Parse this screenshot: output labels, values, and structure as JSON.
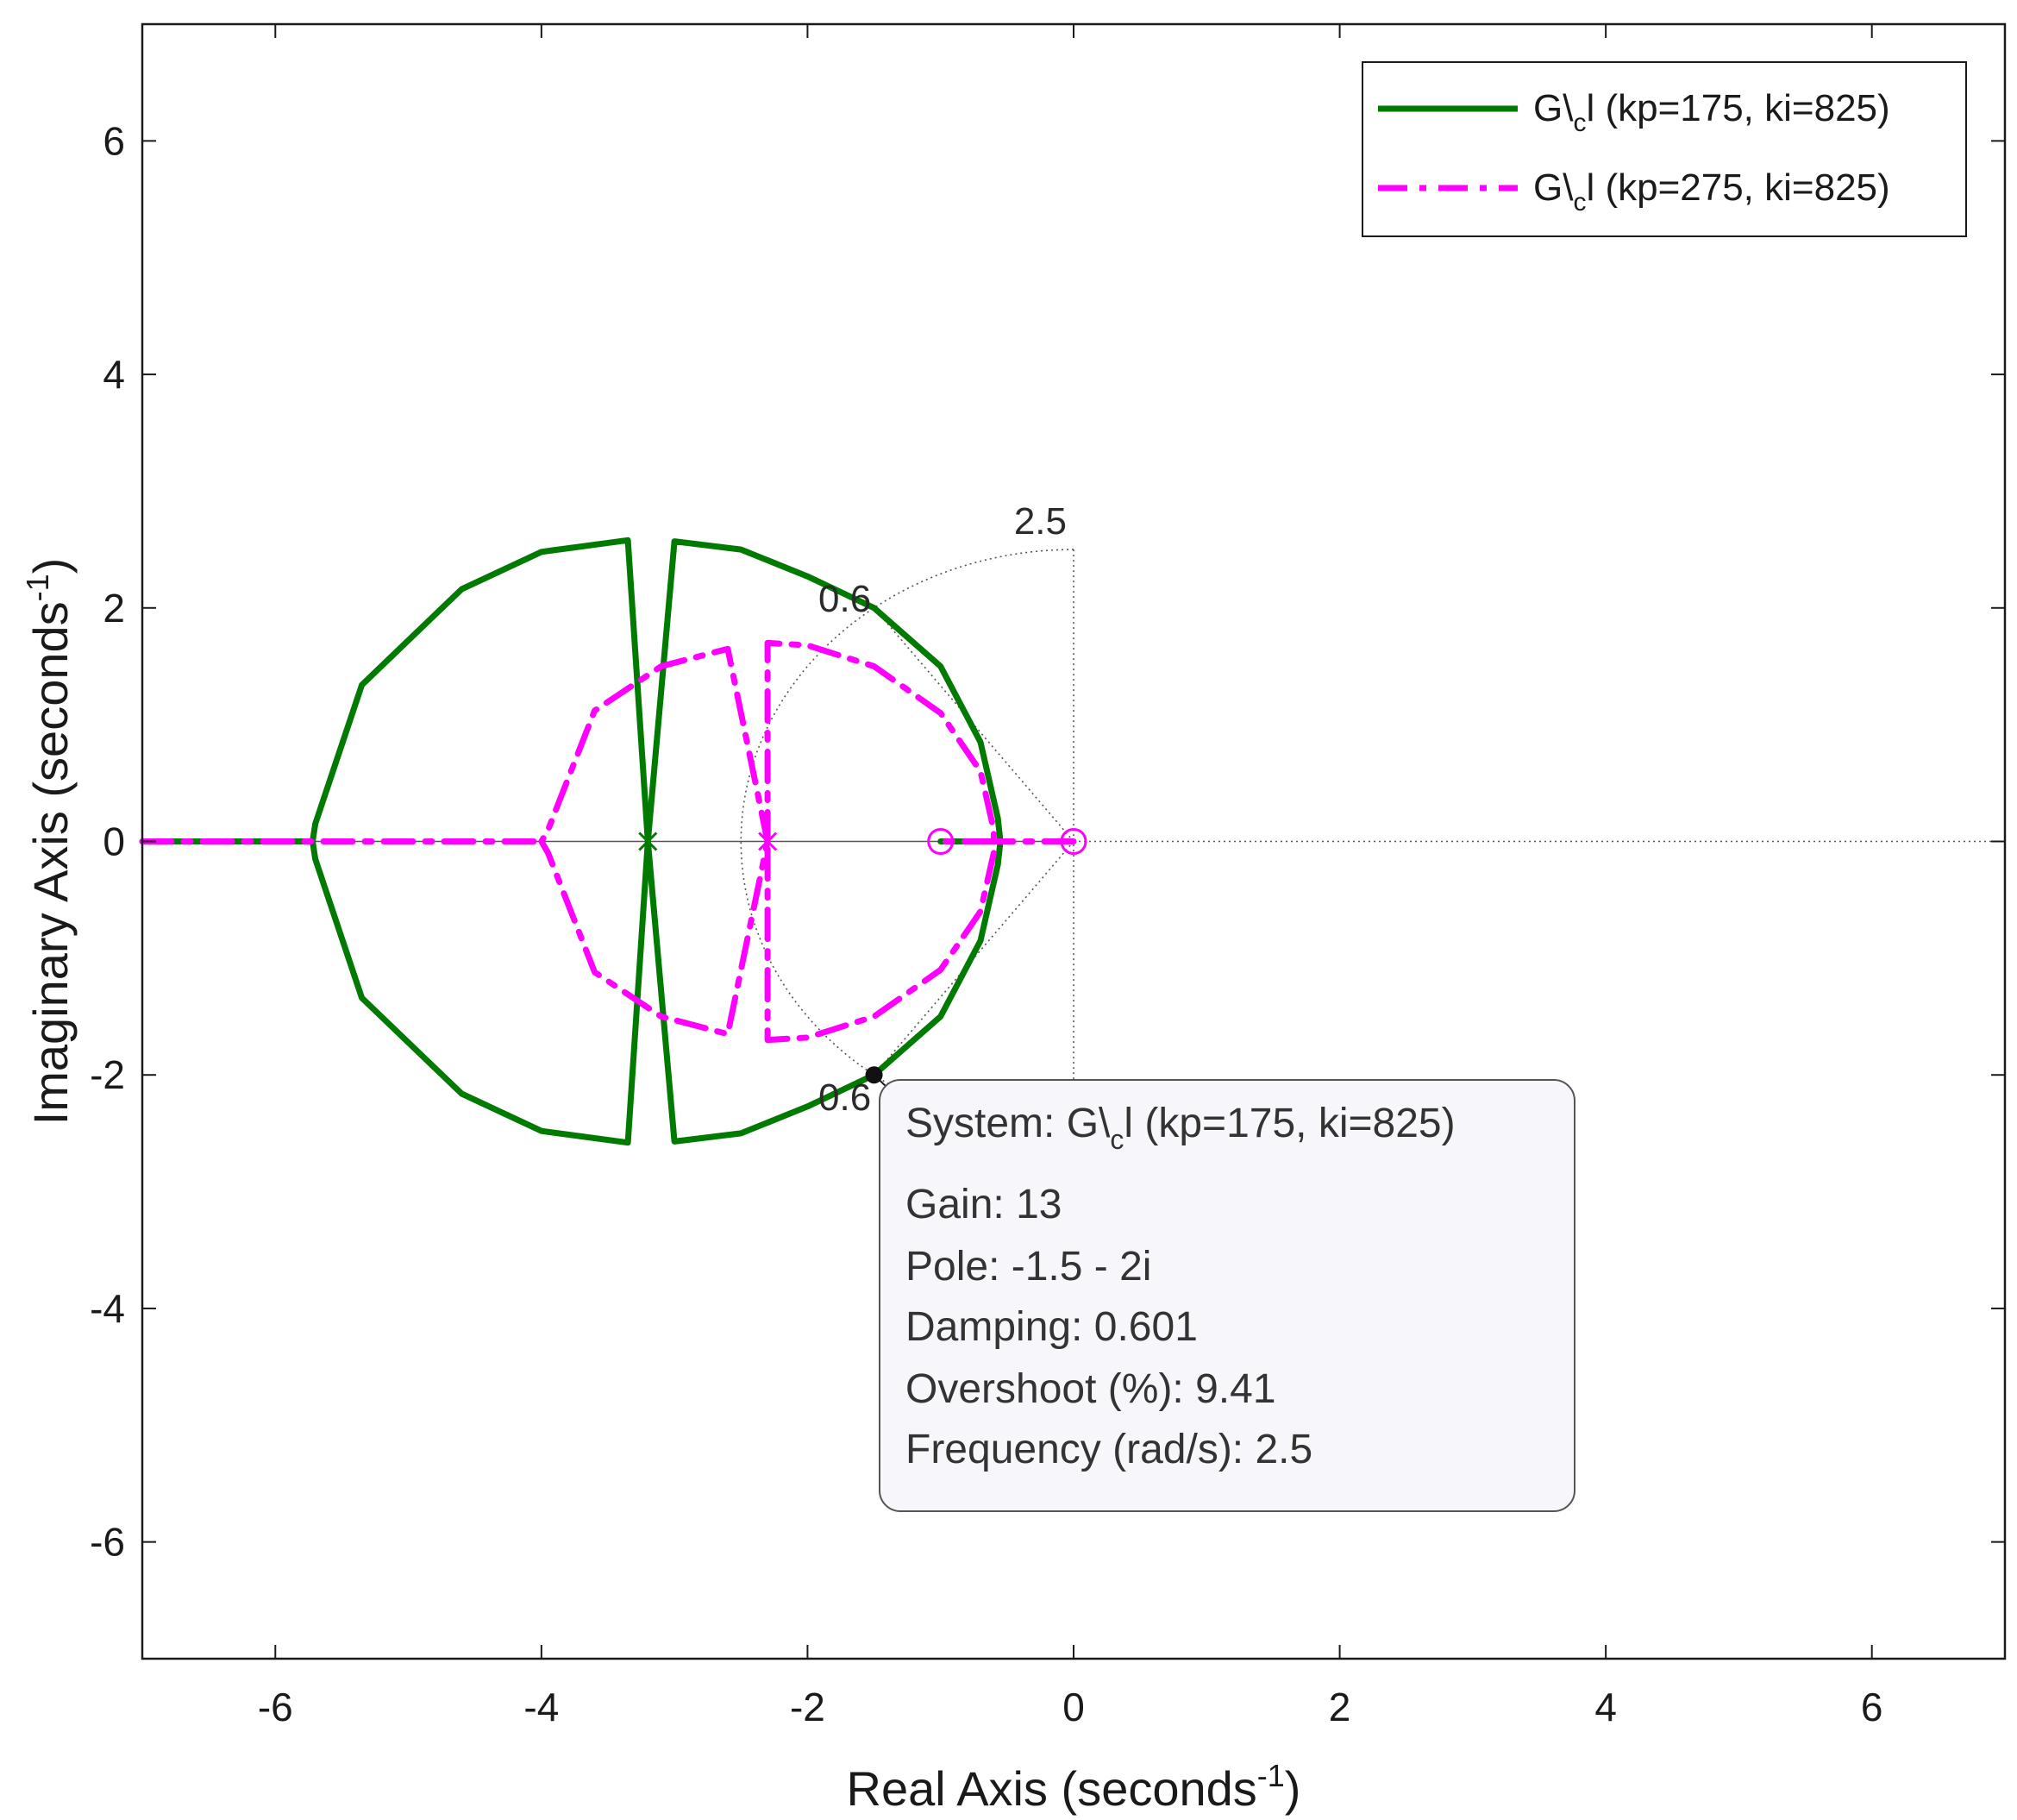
{
  "chart_data": {
    "type": "line",
    "title": "",
    "xlabel": "Real Axis (seconds",
    "ylabel": "Imaginary Axis (seconds",
    "axis_unit_superscript": "-1",
    "xlim": [
      -7,
      7
    ],
    "ylim": [
      -7,
      7
    ],
    "xticks": [
      "-6",
      "-4",
      "-2",
      "0",
      "2",
      "4",
      "6"
    ],
    "yticks": [
      "6",
      "4",
      "2",
      "0",
      "-2",
      "-4",
      "-6"
    ],
    "xtick_values": [
      -6,
      -4,
      -2,
      0,
      2,
      4,
      6
    ],
    "ytick_values": [
      6,
      4,
      2,
      0,
      -2,
      -4,
      -6
    ],
    "grid": "damping-frequency grid (partial)",
    "grid_labels": {
      "frequency": "2.5",
      "damping_top": "0.6",
      "damping_bottom": "0.6"
    },
    "legend_position": "top-right",
    "series": [
      {
        "legend_main": "G\\",
        "legend_sub": "c",
        "legend_rest": "l (kp=175, ki=825)",
        "color": "#007a00",
        "style": "solid",
        "branches": [
          [
            [
              -3.2,
              0
            ],
            [
              -3.35,
              2.58
            ],
            [
              -4.0,
              2.48
            ],
            [
              -4.6,
              2.16
            ],
            [
              -5.35,
              1.34
            ],
            [
              -5.7,
              0.15
            ],
            [
              -5.72,
              0
            ],
            [
              -5.7,
              -0.15
            ],
            [
              -5.35,
              -1.34
            ],
            [
              -4.6,
              -2.16
            ],
            [
              -4.0,
              -2.48
            ],
            [
              -3.35,
              -2.58
            ],
            [
              -3.2,
              0
            ]
          ],
          [
            [
              -3.2,
              0
            ],
            [
              -3.0,
              2.57
            ],
            [
              -2.5,
              2.5
            ],
            [
              -2.0,
              2.27
            ],
            [
              -1.5,
              2.0
            ],
            [
              -1.0,
              1.5
            ],
            [
              -0.7,
              0.85
            ],
            [
              -0.57,
              0.2
            ],
            [
              -0.55,
              0
            ],
            [
              -0.57,
              -0.2
            ],
            [
              -0.7,
              -0.85
            ],
            [
              -1.0,
              -1.5
            ],
            [
              -1.5,
              -2.0
            ],
            [
              -2.0,
              -2.27
            ],
            [
              -2.5,
              -2.5
            ],
            [
              -3.0,
              -2.57
            ],
            [
              -3.2,
              0
            ]
          ],
          [
            [
              -7.0,
              0
            ],
            [
              -5.72,
              0
            ]
          ],
          [
            [
              -0.55,
              0
            ],
            [
              -1.0,
              0
            ]
          ]
        ],
        "poles": [
          [
            -3.2,
            0
          ]
        ],
        "zeros": []
      },
      {
        "legend_main": "G\\",
        "legend_sub": "c",
        "legend_rest": "l (kp=275, ki=825)",
        "color": "#ff00ff",
        "style": "dashdot",
        "branches": [
          [
            [
              -2.3,
              0
            ],
            [
              -2.3,
              1.7
            ],
            [
              -2.0,
              1.68
            ],
            [
              -1.5,
              1.5
            ],
            [
              -1.0,
              1.1
            ],
            [
              -0.7,
              0.6
            ],
            [
              -0.6,
              0.1
            ],
            [
              -0.6,
              0
            ],
            [
              -0.6,
              -0.1
            ],
            [
              -0.7,
              -0.6
            ],
            [
              -1.0,
              -1.1
            ],
            [
              -1.5,
              -1.5
            ],
            [
              -2.0,
              -1.68
            ],
            [
              -2.3,
              -1.7
            ],
            [
              -2.3,
              0
            ]
          ],
          [
            [
              -2.3,
              0
            ],
            [
              -2.6,
              1.65
            ],
            [
              -3.1,
              1.5
            ],
            [
              -3.6,
              1.12
            ],
            [
              -3.95,
              0.1
            ],
            [
              -4.0,
              0
            ],
            [
              -3.95,
              -0.1
            ],
            [
              -3.6,
              -1.12
            ],
            [
              -3.1,
              -1.5
            ],
            [
              -2.6,
              -1.65
            ],
            [
              -2.3,
              0
            ]
          ],
          [
            [
              -7.0,
              0
            ],
            [
              -4.0,
              0
            ]
          ],
          [
            [
              -0.6,
              0
            ],
            [
              -1.0,
              0
            ]
          ],
          [
            [
              0,
              0
            ],
            [
              -0.6,
              0
            ]
          ]
        ],
        "poles": [
          [
            -2.3,
            0
          ]
        ],
        "zeros": [
          [
            -1.0,
            0
          ],
          [
            0,
            0
          ]
        ]
      }
    ],
    "datatip": {
      "point": [
        -1.5,
        -2.0
      ],
      "system_label": "System: G\\",
      "system_sub": "c",
      "system_rest": "l (kp=175, ki=825)",
      "gain": "Gain: 13",
      "pole": "Pole: -1.5 - 2i",
      "damping": "Damping: 0.601",
      "overshoot": "Overshoot (%): 9.41",
      "frequency": "Frequency (rad/s): 2.5"
    },
    "colors": {
      "axis": "#1a1a1a",
      "grid": "#555555",
      "datatip_bg": "#f7f7fb",
      "datatip_border": "#555555"
    }
  }
}
